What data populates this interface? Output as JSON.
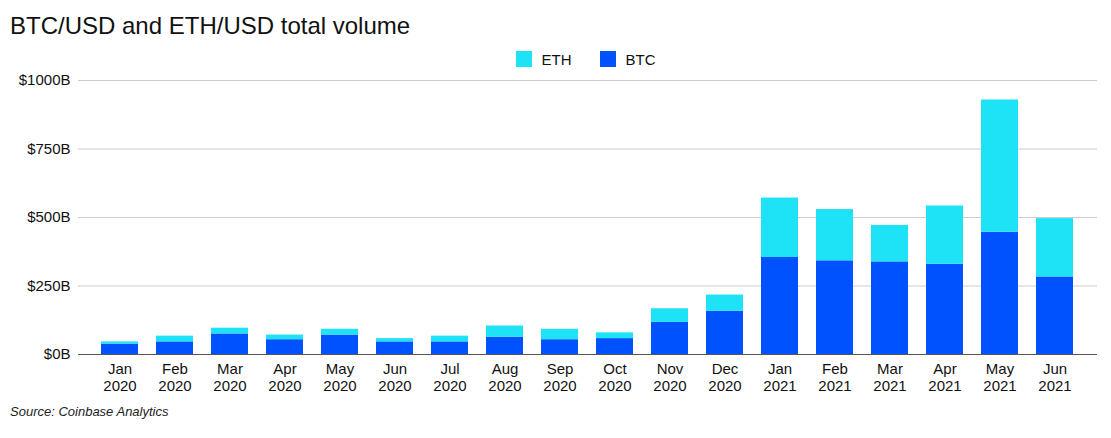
{
  "chart_data": {
    "type": "bar",
    "stacked": true,
    "title": "BTC/USD and ETH/USD total volume",
    "caption": "Source: Coinbase Analytics",
    "categories": [
      "Jan 2020",
      "Feb 2020",
      "Mar 2020",
      "Apr 2020",
      "May 2020",
      "Jun 2020",
      "Jul 2020",
      "Aug 2020",
      "Sep 2020",
      "Oct 2020",
      "Nov 2020",
      "Dec 2020",
      "Jan 2021",
      "Feb 2021",
      "Mar 2021",
      "Apr 2021",
      "May 2021",
      "Jun 2021"
    ],
    "series": [
      {
        "name": "ETH",
        "color": "#1ee3f7",
        "values": [
          8,
          21,
          21,
          17,
          21,
          12,
          21,
          41,
          38,
          21,
          50,
          59,
          217,
          187,
          133,
          213,
          483,
          213
        ]
      },
      {
        "name": "BTC",
        "color": "#0052ff",
        "values": [
          38,
          46,
          75,
          54,
          71,
          46,
          46,
          63,
          54,
          58,
          117,
          158,
          354,
          342,
          338,
          329,
          446,
          283
        ]
      }
    ],
    "ylim": [
      0,
      1000
    ],
    "yticks": [
      {
        "value": 0,
        "label": "$0B"
      },
      {
        "value": 250,
        "label": "$250B"
      },
      {
        "value": 500,
        "label": "$500B"
      },
      {
        "value": 750,
        "label": "$750B"
      },
      {
        "value": 1000,
        "label": "$1000B"
      }
    ],
    "grid": true,
    "legend": "top"
  }
}
